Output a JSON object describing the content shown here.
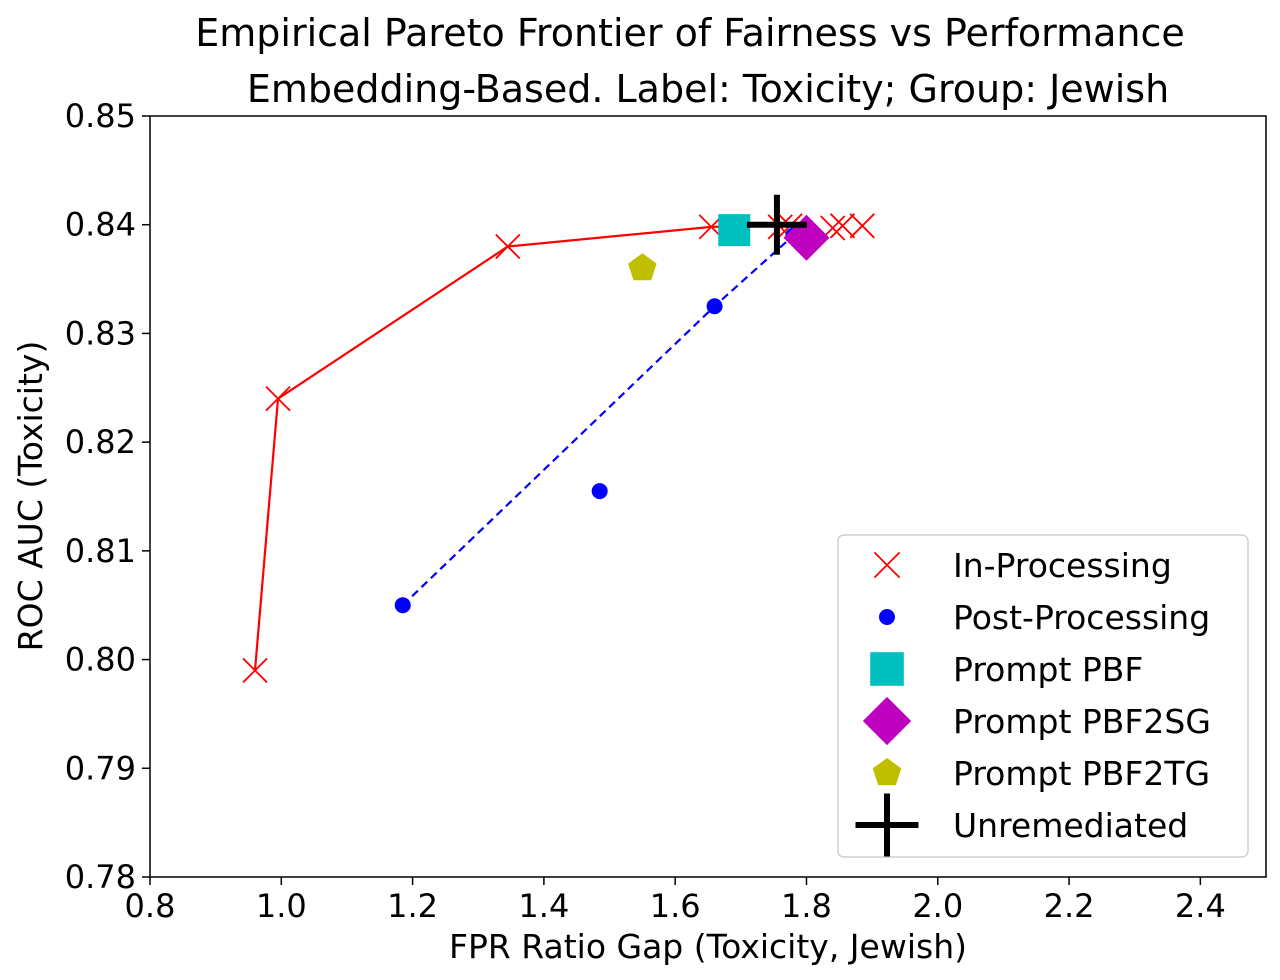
{
  "chart_data": {
    "type": "scatter",
    "title": "Empirical Pareto Frontier of Fairness vs Performance",
    "subtitle": "Embedding-Based. Label: Toxicity; Group: Jewish",
    "xlabel": "FPR Ratio Gap (Toxicity, Jewish)",
    "ylabel": "ROC AUC (Toxicity)",
    "xlim": [
      0.8,
      2.5
    ],
    "ylim": [
      0.78,
      0.85
    ],
    "xticks": [
      "0.8",
      "1.0",
      "1.2",
      "1.4",
      "1.6",
      "1.8",
      "2.0",
      "2.2",
      "2.4"
    ],
    "yticks": [
      "0.78",
      "0.79",
      "0.80",
      "0.81",
      "0.82",
      "0.83",
      "0.84",
      "0.85"
    ],
    "grid": false,
    "legend_position": "lower-right",
    "series": [
      {
        "name": "In-Processing",
        "marker": "x",
        "color": "#ff0000",
        "points": [
          {
            "x": 0.96,
            "y": 0.799
          },
          {
            "x": 0.995,
            "y": 0.824
          },
          {
            "x": 1.345,
            "y": 0.838
          },
          {
            "x": 1.655,
            "y": 0.8398
          },
          {
            "x": 1.76,
            "y": 0.8398
          },
          {
            "x": 1.775,
            "y": 0.8399
          },
          {
            "x": 1.84,
            "y": 0.8397
          },
          {
            "x": 1.855,
            "y": 0.8399
          },
          {
            "x": 1.885,
            "y": 0.8399
          }
        ],
        "frontier": [
          {
            "x": 0.96,
            "y": 0.799
          },
          {
            "x": 0.995,
            "y": 0.824
          },
          {
            "x": 1.345,
            "y": 0.838
          },
          {
            "x": 1.655,
            "y": 0.8398
          },
          {
            "x": 1.76,
            "y": 0.8399
          }
        ]
      },
      {
        "name": "Post-Processing",
        "marker": "o",
        "color": "#0000ff",
        "points": [
          {
            "x": 1.185,
            "y": 0.805
          },
          {
            "x": 1.485,
            "y": 0.8155
          },
          {
            "x": 1.66,
            "y": 0.8325
          },
          {
            "x": 1.78,
            "y": 0.839
          }
        ],
        "frontier": [
          {
            "x": 1.185,
            "y": 0.805
          },
          {
            "x": 1.66,
            "y": 0.8325
          },
          {
            "x": 1.78,
            "y": 0.839
          }
        ]
      },
      {
        "name": "Prompt PBF",
        "marker": "s",
        "color": "#00bfbf",
        "points": [
          {
            "x": 1.69,
            "y": 0.8395
          }
        ]
      },
      {
        "name": "Prompt PBF2SG",
        "marker": "D",
        "color": "#bf00bf",
        "points": [
          {
            "x": 1.8,
            "y": 0.8388
          }
        ]
      },
      {
        "name": "Prompt PBF2TG",
        "marker": "p",
        "color": "#bfbf00",
        "points": [
          {
            "x": 1.55,
            "y": 0.836
          }
        ]
      },
      {
        "name": "Unremediated",
        "marker": "+",
        "color": "#000000",
        "points": [
          {
            "x": 1.755,
            "y": 0.84
          }
        ]
      }
    ]
  }
}
